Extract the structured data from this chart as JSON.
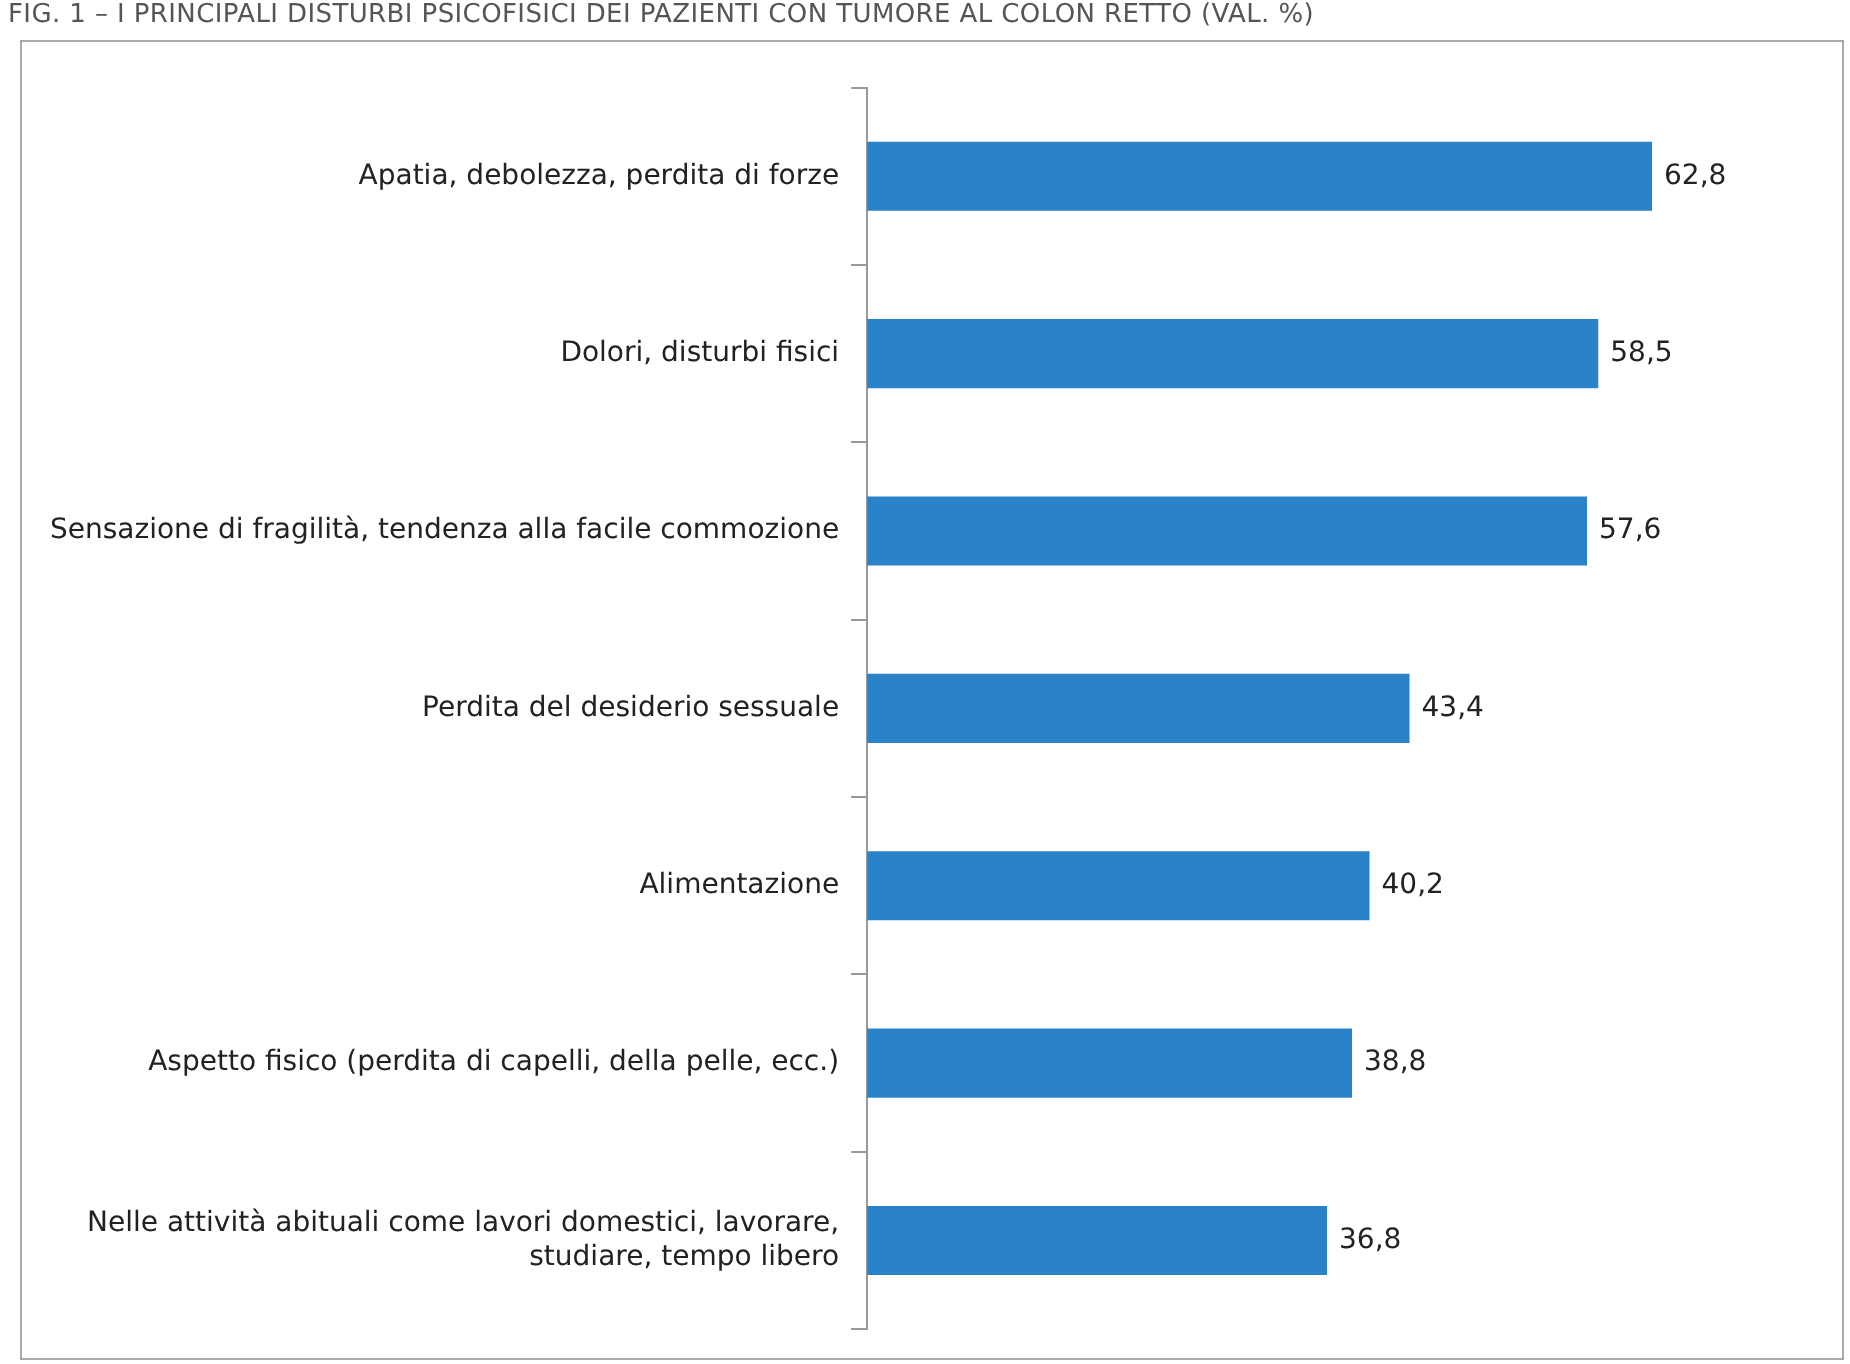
{
  "chart_data": {
    "type": "bar",
    "orientation": "horizontal",
    "title": "FIG. 1 – I PRINCIPALI DISTURBI PSICOFISICI DEI PAZIENTI CON TUMORE AL COLON RETTO (VAL. %)",
    "categories": [
      "Apatia, debolezza, perdita di forze",
      "Dolori, disturbi fisici",
      "Sensazione di fragilità, tendenza alla facile commozione",
      "Perdita del desiderio sessuale",
      "Alimentazione",
      "Aspetto fisico (perdita di capelli, della pelle, ecc.)",
      "Nelle attività abituali come lavori domestici, lavorare, studiare, tempo libero"
    ],
    "values": [
      62.8,
      58.5,
      57.6,
      43.4,
      40.2,
      38.8,
      36.8
    ],
    "value_labels": [
      "62,8",
      "58,5",
      "57,6",
      "43,4",
      "40,2",
      "38,8",
      "36,8"
    ],
    "color": "#2a83c9",
    "legend": false
  }
}
